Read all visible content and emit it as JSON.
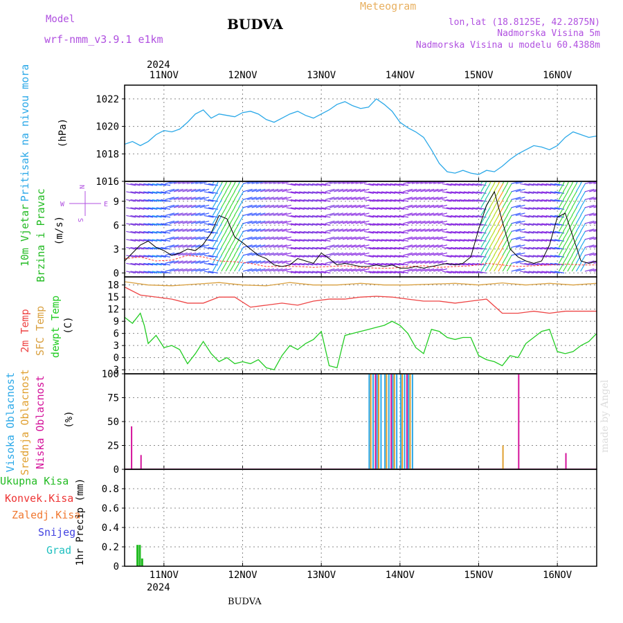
{
  "header": {
    "model_label": "Model",
    "model_value": "wrf-nmm_v3.9.1 e1km",
    "title": "BUDVA",
    "meteogram_label": "Meteogram",
    "lonlat": "lon,lat (18.8125E, 42.2875N)",
    "elevation": "Nadmorska Visina 5m",
    "model_elevation": "Nadmorska Visina u modelu 60.4388m",
    "year": "2024",
    "footer_station": "BUDVA",
    "credit": "made by Angel"
  },
  "colors": {
    "model": "#b050e0",
    "title": "#000000",
    "meteogram": "#e8b060",
    "pressure": "#2aa8e8",
    "wind_label": "#22bb22",
    "wind_speed_line": "#000000",
    "wind_gust_dash": "#ff3333",
    "temp2m": "#ee4444",
    "sfc_temp": "#d9a040",
    "dewpoint": "#22cc22",
    "high_cloud": "#2aa8e8",
    "mid_cloud": "#e0a030",
    "low_cloud": "#d4129a",
    "total_precip": "#22bb22",
    "conv_precip": "#ee3333",
    "frozen_precip": "#f07830",
    "snow": "#4040e0",
    "grail": "#20c0c0",
    "credit": "#dcdcdc"
  },
  "chart_data": [
    {
      "type": "line",
      "panel": "pressure",
      "ylabels": [
        "Pritisak na nivou mora",
        "(hPa)"
      ],
      "x_unit": "days since 10 Nov 2024 00 UTC",
      "xlim": [
        0.0,
        6.0
      ],
      "ylim": [
        1016,
        1023
      ],
      "yticks": [
        1016,
        1018,
        1020,
        1022
      ],
      "grid": true,
      "series": [
        {
          "name": "Pritisak na nivou mora",
          "x": [
            0.0,
            0.1,
            0.2,
            0.3,
            0.4,
            0.5,
            0.6,
            0.7,
            0.8,
            0.9,
            1.0,
            1.1,
            1.2,
            1.3,
            1.4,
            1.5,
            1.6,
            1.7,
            1.8,
            1.9,
            2.0,
            2.1,
            2.2,
            2.3,
            2.4,
            2.5,
            2.6,
            2.7,
            2.8,
            2.9,
            3.0,
            3.1,
            3.2,
            3.3,
            3.4,
            3.5,
            3.6,
            3.7,
            3.8,
            3.9,
            4.0,
            4.1,
            4.2,
            4.3,
            4.4,
            4.5,
            4.6,
            4.7,
            4.8,
            4.9,
            5.0,
            5.1,
            5.2,
            5.3,
            5.4,
            5.5,
            5.6,
            5.7,
            5.8,
            5.9,
            6.0
          ],
          "values": [
            1018.7,
            1018.9,
            1018.6,
            1018.9,
            1019.4,
            1019.7,
            1019.6,
            1019.8,
            1020.3,
            1020.9,
            1021.2,
            1020.6,
            1020.9,
            1020.8,
            1020.7,
            1021.0,
            1021.1,
            1020.9,
            1020.5,
            1020.3,
            1020.6,
            1020.9,
            1021.1,
            1020.8,
            1020.6,
            1020.9,
            1021.2,
            1021.6,
            1021.8,
            1021.5,
            1021.3,
            1021.4,
            1022.0,
            1021.6,
            1021.1,
            1020.3,
            1019.9,
            1019.6,
            1019.2,
            1018.3,
            1017.3,
            1016.7,
            1016.6,
            1016.8,
            1016.6,
            1016.5,
            1016.8,
            1016.7,
            1017.1,
            1017.6,
            1018.0,
            1018.3,
            1018.6,
            1018.5,
            1018.3,
            1018.6,
            1019.2,
            1019.6,
            1019.4,
            1019.2,
            1019.3
          ]
        }
      ]
    },
    {
      "type": "line",
      "panel": "wind",
      "ylabels": [
        "10m Vjetar",
        "Brzina i Pravac",
        "(m/s)"
      ],
      "compass": {
        "n": "N",
        "s": "S",
        "e": "E",
        "w": "W"
      },
      "xlim": [
        0.0,
        6.0
      ],
      "ylim": [
        -0.5,
        11.5
      ],
      "yticks": [
        0,
        3,
        6,
        9
      ],
      "grid": true,
      "series": [
        {
          "name": "10m Vjetar brzina",
          "x": [
            0.0,
            0.1,
            0.2,
            0.3,
            0.4,
            0.5,
            0.6,
            0.7,
            0.8,
            0.9,
            1.0,
            1.1,
            1.2,
            1.3,
            1.4,
            1.5,
            1.6,
            1.7,
            1.8,
            1.9,
            2.0,
            2.1,
            2.2,
            2.3,
            2.4,
            2.5,
            2.6,
            2.7,
            2.8,
            2.9,
            3.0,
            3.1,
            3.2,
            3.3,
            3.4,
            3.5,
            3.6,
            3.7,
            3.8,
            3.9,
            4.0,
            4.1,
            4.2,
            4.3,
            4.4,
            4.5,
            4.6,
            4.7,
            4.8,
            4.9,
            5.0,
            5.1,
            5.2,
            5.3,
            5.4,
            5.5,
            5.6,
            5.7,
            5.8,
            5.9,
            6.0
          ],
          "values": [
            1.5,
            2.5,
            3.5,
            4.0,
            3.2,
            2.8,
            2.2,
            2.5,
            3.0,
            2.8,
            3.6,
            5.0,
            7.2,
            6.8,
            4.5,
            3.8,
            3.0,
            2.2,
            1.8,
            1.0,
            0.8,
            1.0,
            1.8,
            1.5,
            1.2,
            2.5,
            1.8,
            1.0,
            1.2,
            1.0,
            0.8,
            0.8,
            1.0,
            0.8,
            1.0,
            0.6,
            0.6,
            0.8,
            0.6,
            0.8,
            1.0,
            1.2,
            1.0,
            1.2,
            2.0,
            5.5,
            8.5,
            10.2,
            6.5,
            3.0,
            2.0,
            1.5,
            1.2,
            1.5,
            3.5,
            7.0,
            7.5,
            4.5,
            1.5,
            1.2,
            1.5
          ]
        },
        {
          "name": "Udar vjetra",
          "x": [
            0.0,
            0.2,
            0.4,
            0.6,
            0.8,
            1.0,
            1.2,
            1.4,
            1.6,
            1.8,
            2.0,
            2.2,
            2.4,
            2.6,
            2.8,
            3.0,
            3.2,
            3.4,
            3.6,
            3.8,
            4.0,
            4.2,
            4.4,
            4.6,
            4.8,
            5.0,
            5.2,
            5.4,
            5.6,
            5.8,
            6.0
          ],
          "values": [
            1.8,
            2.0,
            1.5,
            1.6,
            2.2,
            2.0,
            1.5,
            1.4,
            1.2,
            0.8,
            0.8,
            0.8,
            0.7,
            0.8,
            0.9,
            0.7,
            0.6,
            0.6,
            0.8,
            0.9,
            0.7,
            0.8,
            0.9,
            1.2,
            1.0,
            0.8,
            0.9,
            1.0,
            1.1,
            1.0,
            1.0
          ]
        }
      ]
    },
    {
      "type": "line",
      "panel": "temperature",
      "ylabels": [
        "2m Temp",
        "SFC Temp",
        "dewpt Temp",
        "(C)"
      ],
      "xlim": [
        0.0,
        6.0
      ],
      "ylim": [
        -4,
        20
      ],
      "yticks": [
        -3,
        0,
        3,
        6,
        9,
        12,
        15,
        18
      ],
      "grid": true,
      "series": [
        {
          "name": "2m Temp",
          "x": [
            0.0,
            0.2,
            0.4,
            0.6,
            0.8,
            1.0,
            1.2,
            1.4,
            1.6,
            1.8,
            2.0,
            2.2,
            2.4,
            2.6,
            2.8,
            3.0,
            3.2,
            3.4,
            3.6,
            3.8,
            4.0,
            4.2,
            4.4,
            4.6,
            4.8,
            5.0,
            5.2,
            5.4,
            5.6,
            5.8,
            6.0
          ],
          "values": [
            17.5,
            15.5,
            15.0,
            14.5,
            13.5,
            13.5,
            15.0,
            15.0,
            12.5,
            13.0,
            13.5,
            13.0,
            14.0,
            14.5,
            14.5,
            15.0,
            15.2,
            15.0,
            14.5,
            14.0,
            14.0,
            13.5,
            14.0,
            14.5,
            11.0,
            11.0,
            11.5,
            11.0,
            11.5,
            11.5,
            11.5
          ]
        },
        {
          "name": "SFC Temp",
          "x": [
            0.0,
            0.3,
            0.6,
            0.9,
            1.2,
            1.5,
            1.8,
            2.1,
            2.4,
            2.7,
            3.0,
            3.3,
            3.6,
            3.9,
            4.2,
            4.5,
            4.8,
            5.1,
            5.4,
            5.7,
            6.0
          ],
          "values": [
            18.8,
            18.0,
            17.8,
            18.2,
            18.6,
            18.0,
            17.8,
            18.6,
            18.0,
            18.0,
            18.4,
            18.0,
            18.0,
            18.2,
            18.4,
            18.0,
            18.5,
            18.0,
            18.4,
            18.0,
            18.4
          ]
        },
        {
          "name": "dewpt Temp",
          "x": [
            0.0,
            0.1,
            0.2,
            0.25,
            0.3,
            0.4,
            0.5,
            0.6,
            0.7,
            0.8,
            0.9,
            1.0,
            1.1,
            1.2,
            1.3,
            1.4,
            1.5,
            1.6,
            1.7,
            1.8,
            1.9,
            2.0,
            2.1,
            2.2,
            2.3,
            2.4,
            2.5,
            2.6,
            2.7,
            2.8,
            2.9,
            3.0,
            3.1,
            3.2,
            3.3,
            3.4,
            3.5,
            3.6,
            3.7,
            3.8,
            3.9,
            4.0,
            4.1,
            4.2,
            4.3,
            4.4,
            4.5,
            4.6,
            4.7,
            4.8,
            4.9,
            5.0,
            5.1,
            5.2,
            5.3,
            5.4,
            5.5,
            5.6,
            5.7,
            5.8,
            5.9,
            6.0
          ],
          "values": [
            10.0,
            8.5,
            11.0,
            8.0,
            3.5,
            5.5,
            2.5,
            3.0,
            2.0,
            -1.5,
            1.0,
            4.0,
            1.0,
            -1.0,
            0.0,
            -1.5,
            -1.0,
            -1.5,
            -0.5,
            -2.5,
            -3.0,
            0.5,
            3.0,
            2.0,
            3.5,
            4.5,
            6.5,
            -2.0,
            -2.5,
            5.5,
            6.0,
            6.5,
            7.0,
            7.5,
            8.0,
            9.0,
            8.0,
            6.0,
            2.5,
            1.0,
            7.0,
            6.5,
            5.0,
            4.5,
            5.0,
            5.0,
            0.5,
            -0.5,
            -1.0,
            -2.0,
            0.5,
            0.0,
            3.5,
            5.0,
            6.5,
            7.0,
            1.5,
            1.0,
            1.5,
            3.0,
            4.0,
            6.0
          ]
        }
      ]
    },
    {
      "type": "bar",
      "panel": "cloud",
      "ylabels": [
        "Visoka Oblacnost",
        "Srednja Oblacnost",
        "Niska Oblacnost",
        "(%)"
      ],
      "xlim": [
        0.0,
        6.0
      ],
      "ylim": [
        0,
        100
      ],
      "yticks": [
        0,
        25,
        50,
        75,
        100
      ],
      "grid": true,
      "series": [
        {
          "name": "Visoka Oblacnost",
          "x": [
            3.1,
            3.15,
            3.2,
            3.25,
            3.3,
            3.35,
            3.4,
            3.45,
            3.5,
            3.55,
            3.6,
            3.65
          ],
          "values": [
            100,
            100,
            100,
            100,
            100,
            100,
            100,
            100,
            100,
            100,
            100,
            100
          ]
        },
        {
          "name": "Srednja Oblacnost",
          "x": [
            3.12,
            3.22,
            3.32,
            3.42,
            3.52,
            3.62,
            4.8
          ],
          "values": [
            100,
            100,
            100,
            100,
            100,
            100,
            25
          ]
        },
        {
          "name": "Niska Oblacnost",
          "x": [
            0.08,
            0.2,
            3.18,
            3.38,
            3.58,
            5.0,
            5.6
          ],
          "values": [
            45,
            15,
            100,
            100,
            100,
            100,
            17
          ]
        }
      ]
    },
    {
      "type": "bar",
      "panel": "precipitation",
      "ylabels": [
        "Ukupna Kisa",
        "Konvek.Kisa",
        "Zaledj.Kisa",
        "Snijeg",
        "Grad",
        "1hr Precip (mm)"
      ],
      "xlim": [
        0.0,
        6.0
      ],
      "ylim": [
        0,
        1
      ],
      "yticks": [
        0,
        0.2,
        0.4,
        0.6,
        0.8
      ],
      "ytick_labels": [
        "0",
        "0.2",
        "0.4",
        "0.6",
        "0.8"
      ],
      "xticks": [
        0.5,
        1.5,
        2.5,
        3.5,
        4.5,
        5.5
      ],
      "xtick_labels": [
        "11NOV",
        "12NOV",
        "13NOV",
        "14NOV",
        "15NOV",
        "16NOV"
      ],
      "grid": true,
      "series": [
        {
          "name": "Ukupna Kisa",
          "x": [
            0.15,
            0.18,
            0.21
          ],
          "values": [
            0.22,
            0.22,
            0.08
          ]
        }
      ]
    }
  ]
}
